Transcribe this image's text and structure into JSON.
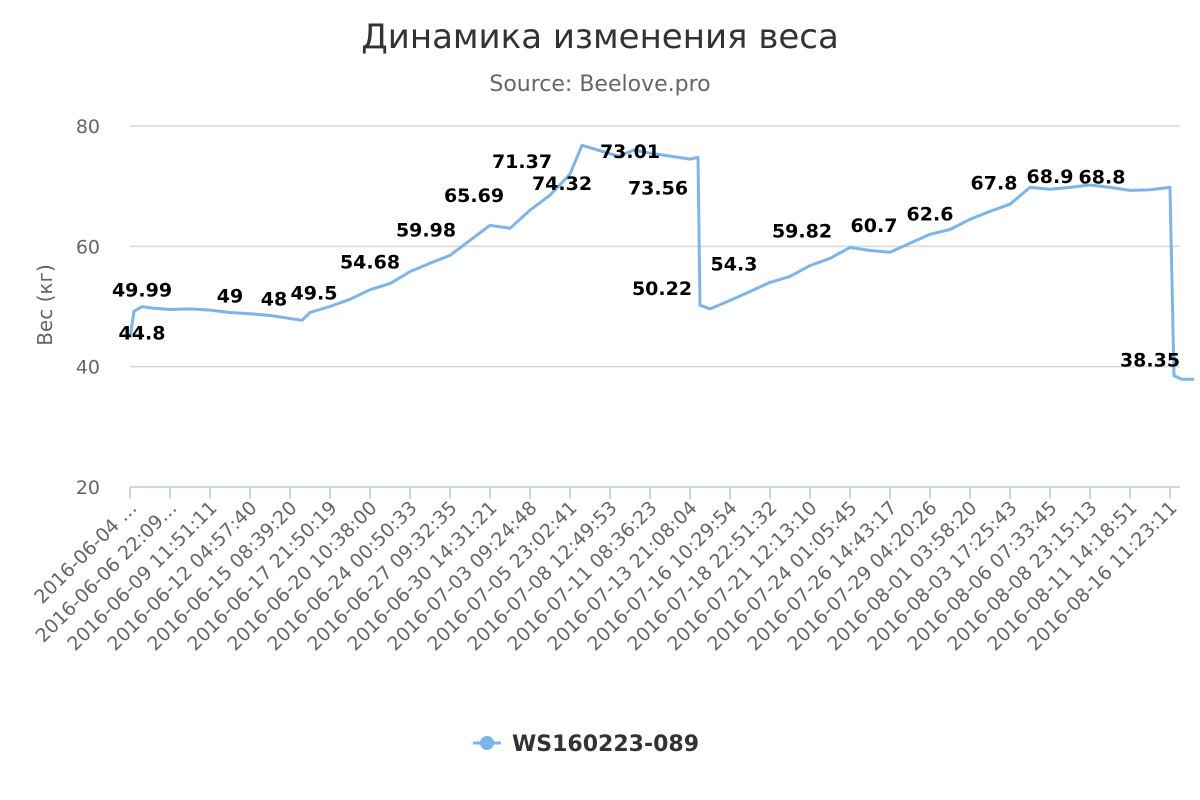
{
  "chart_data": {
    "type": "line",
    "title": "Динамика изменения веса",
    "subtitle": "Source: Beelove.pro",
    "ylabel": "Вес (кг)",
    "xlabel": "",
    "ylim": [
      20,
      80
    ],
    "yticks": [
      20,
      40,
      60,
      80
    ],
    "grid": true,
    "legend_position": "bottom-center",
    "series_color": "#7cb5ec",
    "x_categories": [
      "2016-06-04 …",
      "2016-06-06 22:09…",
      "2016-06-09 11:51:11",
      "2016-06-12 04:57:40",
      "2016-06-15 08:39:20",
      "2016-06-17 21:50:19",
      "2016-06-20 10:38:00",
      "2016-06-24 00:50:33",
      "2016-06-27 09:32:35",
      "2016-06-30 14:31:21",
      "2016-07-03 09:24:48",
      "2016-07-05 23:02:41",
      "2016-07-08 12:49:53",
      "2016-07-11 08:36:23",
      "2016-07-13 21:08:04",
      "2016-07-16 10:29:54",
      "2016-07-18 22:51:32",
      "2016-07-21 12:13:10",
      "2016-07-24 01:05:45",
      "2016-07-26 14:43:17",
      "2016-07-29 04:20:26",
      "2016-08-01 03:58:20",
      "2016-08-03 17:25:43",
      "2016-08-06 07:33:45",
      "2016-08-08 23:15:13",
      "2016-08-11 14:18:51",
      "2016-08-16 11:23:11"
    ],
    "series": [
      {
        "name": "WS160223-089",
        "points": [
          [
            0,
            44.8
          ],
          [
            0.1,
            49.2
          ],
          [
            0.3,
            49.99
          ],
          [
            0.6,
            49.7
          ],
          [
            1.0,
            49.5
          ],
          [
            1.5,
            49.6
          ],
          [
            2.0,
            49.4
          ],
          [
            2.5,
            49.0
          ],
          [
            3.0,
            48.8
          ],
          [
            3.5,
            48.5
          ],
          [
            4.0,
            48.0
          ],
          [
            4.3,
            47.7
          ],
          [
            4.5,
            49.0
          ],
          [
            5.0,
            50.0
          ],
          [
            5.5,
            51.2
          ],
          [
            6.0,
            52.8
          ],
          [
            6.5,
            53.8
          ],
          [
            7.0,
            55.8
          ],
          [
            7.5,
            57.2
          ],
          [
            8.0,
            58.5
          ],
          [
            8.5,
            61.0
          ],
          [
            9.0,
            63.5
          ],
          [
            9.5,
            63.0
          ],
          [
            10.0,
            66.0
          ],
          [
            10.5,
            68.5
          ],
          [
            11.0,
            72.0
          ],
          [
            11.3,
            76.8
          ],
          [
            11.8,
            75.8
          ],
          [
            12.2,
            75.0
          ],
          [
            12.6,
            76.0
          ],
          [
            13.0,
            75.5
          ],
          [
            13.5,
            75.0
          ],
          [
            14.0,
            74.5
          ],
          [
            14.2,
            74.8
          ],
          [
            14.25,
            50.22
          ],
          [
            14.5,
            49.6
          ],
          [
            15.0,
            51.0
          ],
          [
            15.5,
            52.5
          ],
          [
            16.0,
            54.0
          ],
          [
            16.5,
            55.0
          ],
          [
            17.0,
            56.8
          ],
          [
            17.5,
            58.0
          ],
          [
            18.0,
            59.82
          ],
          [
            18.5,
            59.3
          ],
          [
            19.0,
            59.0
          ],
          [
            19.5,
            60.5
          ],
          [
            20.0,
            62.0
          ],
          [
            20.5,
            62.8
          ],
          [
            21.0,
            64.5
          ],
          [
            21.5,
            65.8
          ],
          [
            22.0,
            67.0
          ],
          [
            22.5,
            69.8
          ],
          [
            23.0,
            69.5
          ],
          [
            23.5,
            69.8
          ],
          [
            24.0,
            70.2
          ],
          [
            24.5,
            69.8
          ],
          [
            25.0,
            69.3
          ],
          [
            25.5,
            69.4
          ],
          [
            26.0,
            69.8
          ],
          [
            26.1,
            38.5
          ],
          [
            26.3,
            37.9
          ],
          [
            26.6,
            37.9
          ]
        ]
      }
    ],
    "data_labels": [
      {
        "text": "49.99",
        "x": 0.3,
        "y": 49.99,
        "pos": "above"
      },
      {
        "text": "44.8",
        "x": 0.3,
        "y": 49.5,
        "pos": "below"
      },
      {
        "text": "49",
        "x": 2.5,
        "y": 49.0,
        "pos": "above"
      },
      {
        "text": "48",
        "x": 3.6,
        "y": 48.5,
        "pos": "above"
      },
      {
        "text": "49.5",
        "x": 4.6,
        "y": 49.5,
        "pos": "above"
      },
      {
        "text": "54.68",
        "x": 6.0,
        "y": 54.68,
        "pos": "above"
      },
      {
        "text": "59.98",
        "x": 7.4,
        "y": 59.98,
        "pos": "above"
      },
      {
        "text": "65.69",
        "x": 8.6,
        "y": 65.69,
        "pos": "above"
      },
      {
        "text": "71.37",
        "x": 9.8,
        "y": 71.37,
        "pos": "above"
      },
      {
        "text": "74.32",
        "x": 10.8,
        "y": 74.32,
        "pos": "below"
      },
      {
        "text": "73.01",
        "x": 12.5,
        "y": 73.01,
        "pos": "above"
      },
      {
        "text": "73.56",
        "x": 13.2,
        "y": 73.56,
        "pos": "below"
      },
      {
        "text": "50.22",
        "x": 13.3,
        "y": 50.22,
        "pos": "above"
      },
      {
        "text": "54.3",
        "x": 15.1,
        "y": 54.3,
        "pos": "above"
      },
      {
        "text": "59.82",
        "x": 16.8,
        "y": 59.82,
        "pos": "above"
      },
      {
        "text": "60.7",
        "x": 18.6,
        "y": 60.7,
        "pos": "above"
      },
      {
        "text": "62.6",
        "x": 20.0,
        "y": 62.6,
        "pos": "above"
      },
      {
        "text": "67.8",
        "x": 21.6,
        "y": 67.8,
        "pos": "above"
      },
      {
        "text": "68.9",
        "x": 23.0,
        "y": 68.9,
        "pos": "above"
      },
      {
        "text": "68.8",
        "x": 24.3,
        "y": 68.8,
        "pos": "above"
      },
      {
        "text": "38.35",
        "x": 25.5,
        "y": 38.35,
        "pos": "above"
      }
    ],
    "legend": [
      {
        "name": "WS160223-089",
        "color": "#7cb5ec"
      }
    ]
  }
}
